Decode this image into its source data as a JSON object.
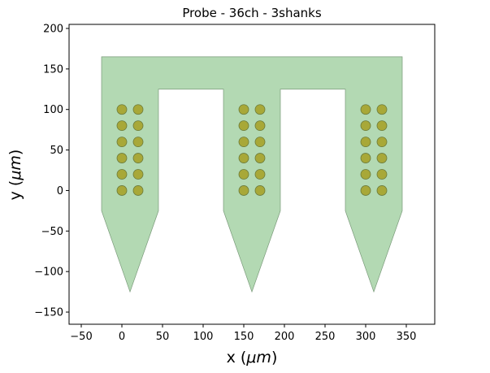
{
  "chart_data": {
    "type": "probe-layout",
    "title": "Probe - 36ch - 3shanks",
    "xlabel_prefix": "x (",
    "ylabel_prefix": "y (",
    "unit_mu": "μ",
    "unit_m": "m",
    "label_suffix": ")",
    "xlim": [
      -65,
      385
    ],
    "ylim": [
      -165,
      205
    ],
    "xticks": [
      -50,
      0,
      50,
      100,
      150,
      200,
      250,
      300,
      350
    ],
    "yticks": [
      -150,
      -100,
      -50,
      0,
      50,
      100,
      150,
      200
    ],
    "grid": false,
    "colors": {
      "probe_fill": "#b3d9b3",
      "probe_edge": "#7a9a7a",
      "contact_fill": "#a8a838",
      "contact_edge": "#6b7a3a"
    },
    "probe_outline": [
      [
        -25,
        165
      ],
      [
        345,
        165
      ],
      [
        345,
        -25
      ],
      [
        310,
        -125
      ],
      [
        275,
        -25
      ],
      [
        275,
        125
      ],
      [
        195,
        125
      ],
      [
        195,
        -25
      ],
      [
        160,
        -125
      ],
      [
        125,
        -25
      ],
      [
        125,
        125
      ],
      [
        45,
        125
      ],
      [
        45,
        -25
      ],
      [
        10,
        -125
      ],
      [
        -25,
        -25
      ]
    ],
    "contact_radius": 6,
    "contacts": [
      [
        0,
        0
      ],
      [
        20,
        0
      ],
      [
        0,
        20
      ],
      [
        20,
        20
      ],
      [
        0,
        40
      ],
      [
        20,
        40
      ],
      [
        0,
        60
      ],
      [
        20,
        60
      ],
      [
        0,
        80
      ],
      [
        20,
        80
      ],
      [
        0,
        100
      ],
      [
        20,
        100
      ],
      [
        150,
        0
      ],
      [
        170,
        0
      ],
      [
        150,
        20
      ],
      [
        170,
        20
      ],
      [
        150,
        40
      ],
      [
        170,
        40
      ],
      [
        150,
        60
      ],
      [
        170,
        60
      ],
      [
        150,
        80
      ],
      [
        170,
        80
      ],
      [
        150,
        100
      ],
      [
        170,
        100
      ],
      [
        300,
        0
      ],
      [
        320,
        0
      ],
      [
        300,
        20
      ],
      [
        320,
        20
      ],
      [
        300,
        40
      ],
      [
        320,
        40
      ],
      [
        300,
        60
      ],
      [
        320,
        60
      ],
      [
        300,
        80
      ],
      [
        320,
        80
      ],
      [
        300,
        100
      ],
      [
        320,
        100
      ]
    ]
  }
}
